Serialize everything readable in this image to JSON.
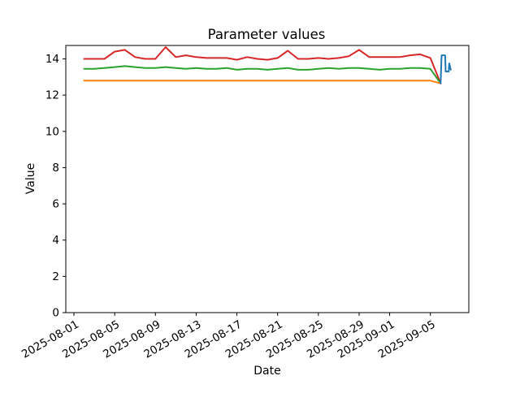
{
  "figure": {
    "background": "#ffffff",
    "axes_color": "#000000"
  },
  "chart_data": {
    "type": "line",
    "title": "Parameter values",
    "xlabel": "Date",
    "ylabel": "Value",
    "grid": false,
    "legend": "none",
    "x_axis": {
      "start_date": "2025-08-01",
      "tick_labels": [
        "2025-08-01",
        "2025-08-05",
        "2025-08-09",
        "2025-08-13",
        "2025-08-17",
        "2025-08-21",
        "2025-08-25",
        "2025-08-29",
        "2025-09-01",
        "2025-09-05"
      ],
      "tick_days": [
        0,
        4,
        8,
        12,
        16,
        20,
        24,
        28,
        31,
        35
      ],
      "xlim_days": [
        -0.9,
        38.8
      ],
      "tick_rotation_deg": 30
    },
    "y_axis": {
      "ticks": [
        0,
        2,
        4,
        6,
        8,
        10,
        12,
        14
      ],
      "ylim": [
        0,
        14.74
      ]
    },
    "series": [
      {
        "name": "red",
        "color": "#d62728",
        "x_days": [
          1,
          2,
          3,
          4,
          5,
          6,
          7,
          8,
          9,
          10,
          11,
          12,
          13,
          14,
          15,
          16,
          17,
          18,
          19,
          20,
          21,
          22,
          23,
          24,
          25,
          26,
          27,
          28,
          29,
          30,
          31,
          32,
          33,
          34,
          35,
          36
        ],
        "values": [
          14.0,
          14.0,
          14.0,
          14.4,
          14.5,
          14.1,
          14.0,
          14.0,
          14.65,
          14.1,
          14.2,
          14.1,
          14.05,
          14.05,
          14.05,
          13.95,
          14.1,
          14.0,
          13.95,
          14.05,
          14.45,
          14.0,
          14.0,
          14.05,
          14.0,
          14.05,
          14.15,
          14.5,
          14.1,
          14.1,
          14.1,
          14.1,
          14.2,
          14.25,
          14.05,
          12.65
        ]
      },
      {
        "name": "green",
        "color": "#2ca02c",
        "x_days": [
          1,
          2,
          3,
          4,
          5,
          6,
          7,
          8,
          9,
          10,
          11,
          12,
          13,
          14,
          15,
          16,
          17,
          18,
          19,
          20,
          21,
          22,
          23,
          24,
          25,
          26,
          27,
          28,
          29,
          30,
          31,
          32,
          33,
          34,
          35,
          36
        ],
        "values": [
          13.45,
          13.45,
          13.5,
          13.55,
          13.6,
          13.55,
          13.5,
          13.5,
          13.55,
          13.5,
          13.45,
          13.5,
          13.45,
          13.45,
          13.5,
          13.4,
          13.45,
          13.45,
          13.4,
          13.45,
          13.5,
          13.4,
          13.4,
          13.45,
          13.5,
          13.45,
          13.5,
          13.5,
          13.45,
          13.4,
          13.45,
          13.45,
          13.5,
          13.5,
          13.45,
          12.65
        ]
      },
      {
        "name": "orange",
        "color": "#ff7f0e",
        "x_days": [
          1,
          2,
          3,
          4,
          5,
          6,
          7,
          8,
          9,
          10,
          11,
          12,
          13,
          14,
          15,
          16,
          17,
          18,
          19,
          20,
          21,
          22,
          23,
          24,
          25,
          26,
          27,
          28,
          29,
          30,
          31,
          32,
          33,
          34,
          35,
          36
        ],
        "values": [
          12.8,
          12.8,
          12.8,
          12.8,
          12.8,
          12.8,
          12.8,
          12.8,
          12.8,
          12.8,
          12.8,
          12.8,
          12.8,
          12.8,
          12.8,
          12.8,
          12.8,
          12.8,
          12.8,
          12.8,
          12.8,
          12.8,
          12.8,
          12.8,
          12.8,
          12.8,
          12.8,
          12.8,
          12.8,
          12.8,
          12.8,
          12.8,
          12.8,
          12.8,
          12.8,
          12.65
        ]
      },
      {
        "name": "blue",
        "color": "#1f77b4",
        "x_days": [
          36.0,
          36.1,
          36.45,
          36.5,
          36.8,
          36.85,
          37.0
        ],
        "values": [
          12.65,
          14.2,
          14.2,
          13.3,
          13.3,
          13.75,
          13.4
        ]
      }
    ]
  }
}
